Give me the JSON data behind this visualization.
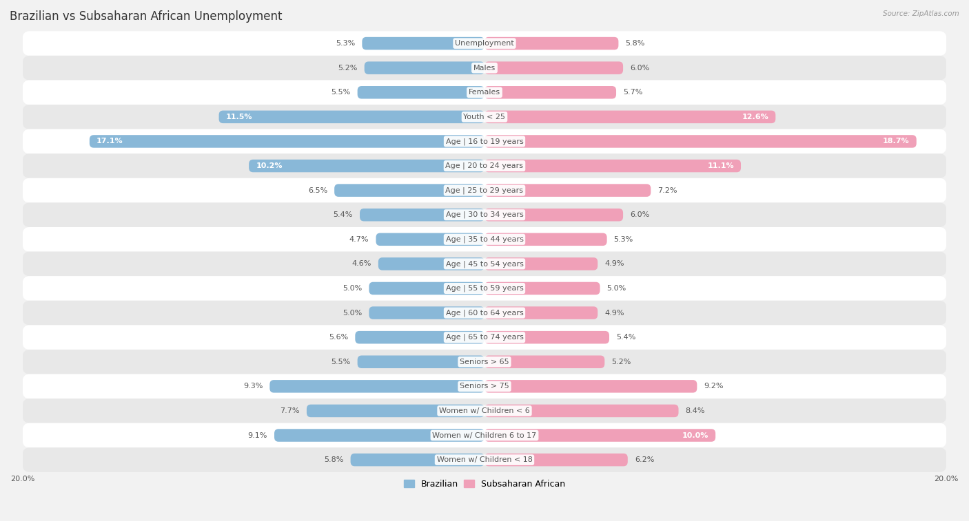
{
  "title": "Brazilian vs Subsaharan African Unemployment",
  "source": "Source: ZipAtlas.com",
  "categories": [
    "Unemployment",
    "Males",
    "Females",
    "Youth < 25",
    "Age | 16 to 19 years",
    "Age | 20 to 24 years",
    "Age | 25 to 29 years",
    "Age | 30 to 34 years",
    "Age | 35 to 44 years",
    "Age | 45 to 54 years",
    "Age | 55 to 59 years",
    "Age | 60 to 64 years",
    "Age | 65 to 74 years",
    "Seniors > 65",
    "Seniors > 75",
    "Women w/ Children < 6",
    "Women w/ Children 6 to 17",
    "Women w/ Children < 18"
  ],
  "brazilian": [
    5.3,
    5.2,
    5.5,
    11.5,
    17.1,
    10.2,
    6.5,
    5.4,
    4.7,
    4.6,
    5.0,
    5.0,
    5.6,
    5.5,
    9.3,
    7.7,
    9.1,
    5.8
  ],
  "subsaharan": [
    5.8,
    6.0,
    5.7,
    12.6,
    18.7,
    11.1,
    7.2,
    6.0,
    5.3,
    4.9,
    5.0,
    4.9,
    5.4,
    5.2,
    9.2,
    8.4,
    10.0,
    6.2
  ],
  "brazilian_color": "#89b8d8",
  "subsaharan_color": "#f0a0b8",
  "bar_height": 0.52,
  "xlim": 20.0,
  "background_color": "#f2f2f2",
  "row_light": "#ffffff",
  "row_dark": "#e8e8e8",
  "title_fontsize": 12,
  "label_fontsize": 8,
  "value_fontsize": 8,
  "legend_fontsize": 9,
  "source_fontsize": 7.5,
  "value_color_inside": "#ffffff",
  "value_color_outside": "#555555",
  "label_color": "#555555",
  "inside_threshold": 10.0
}
